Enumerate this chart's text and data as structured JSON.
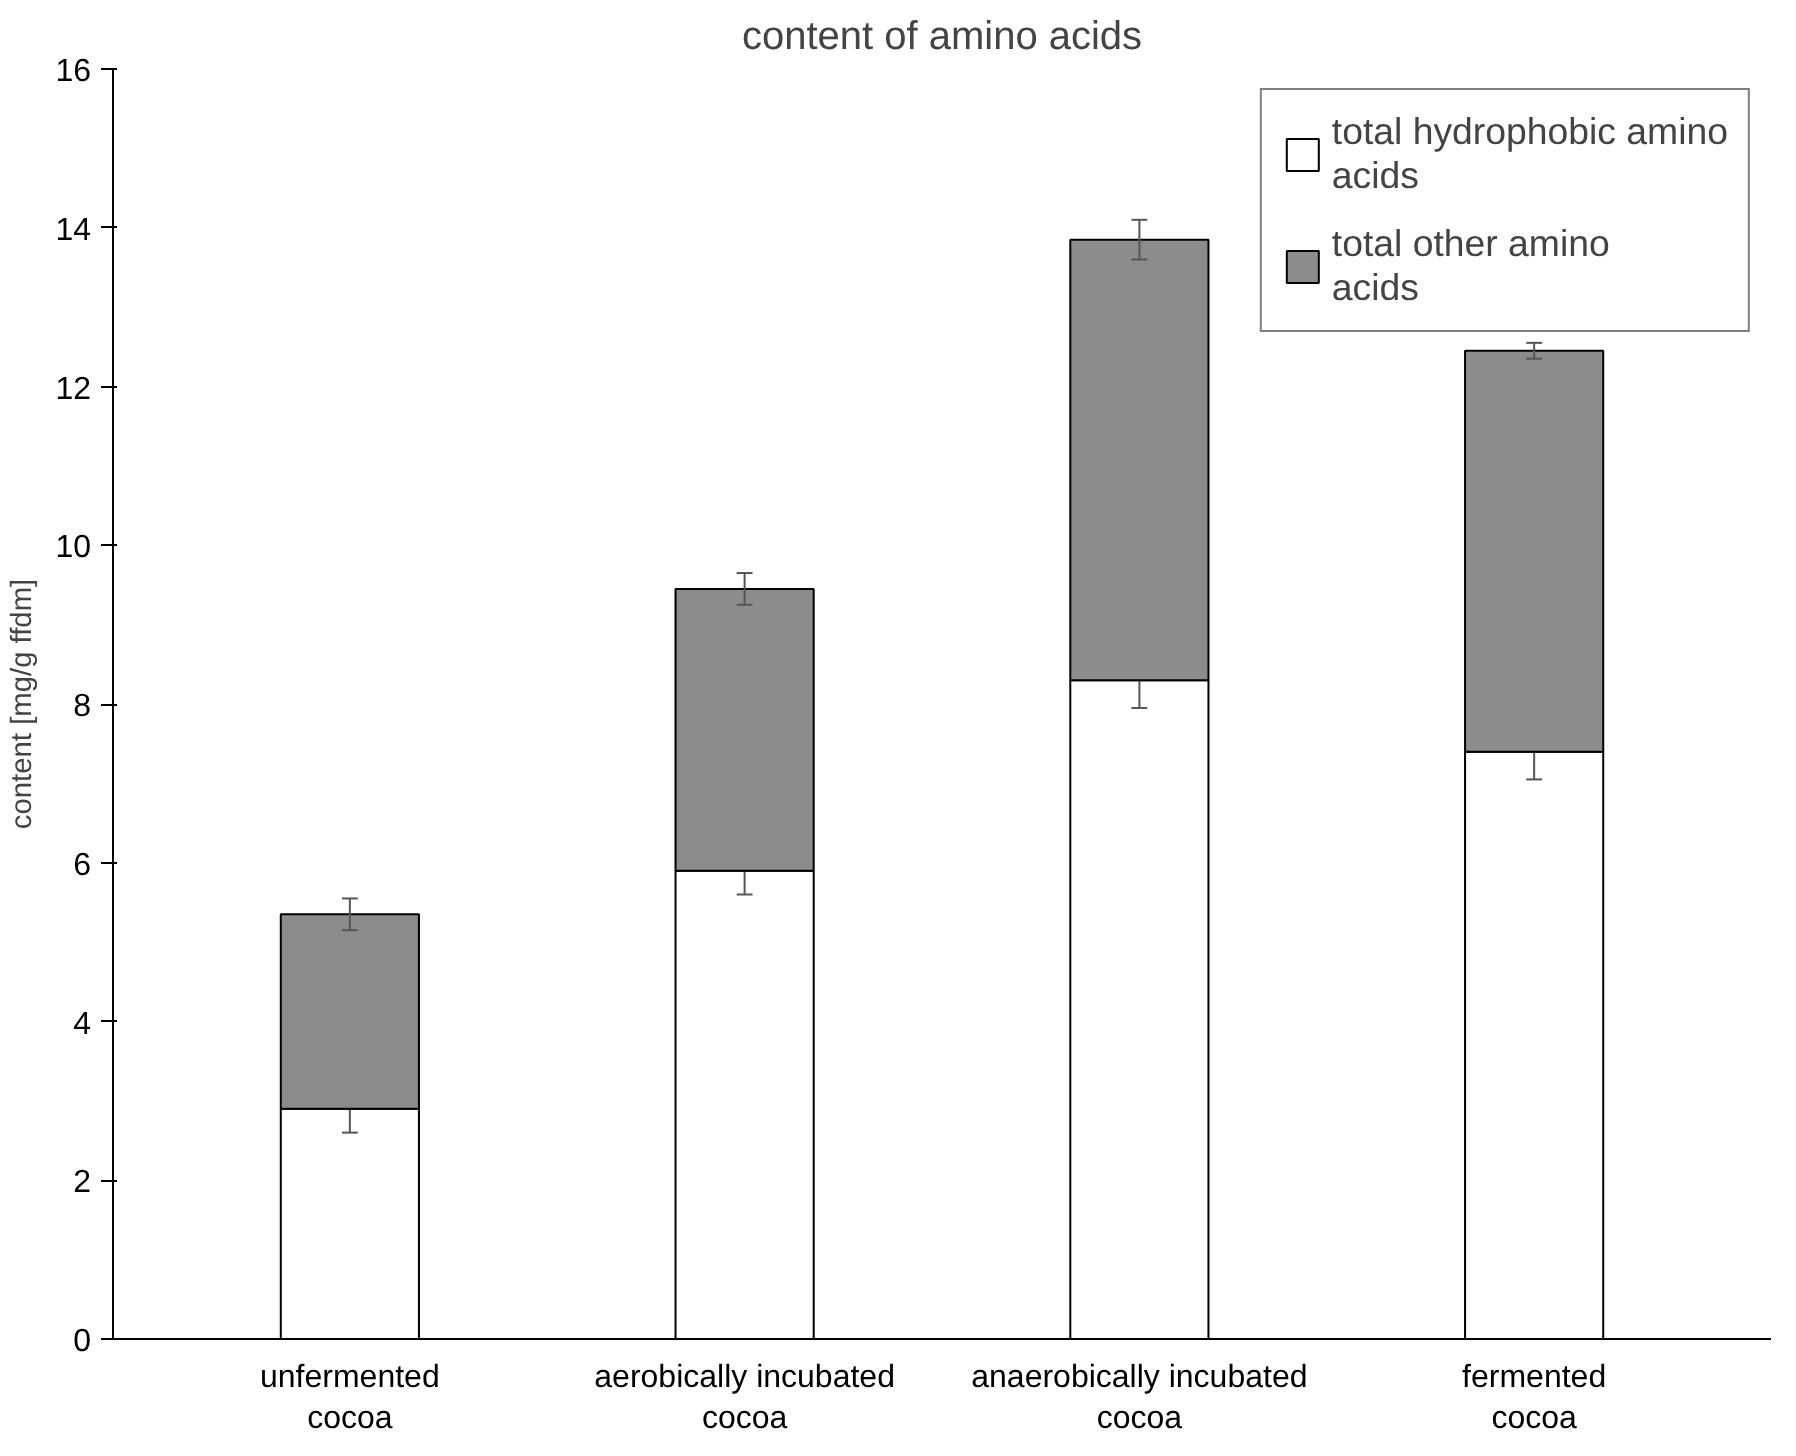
{
  "chart_data": {
    "type": "bar",
    "title": "content of amino acids",
    "ylabel": "content [mg/g ffdm]",
    "categories": [
      "unfermented cocoa",
      "aerobically incubated cocoa",
      "anaerobically incubated cocoa",
      "fermented cocoa"
    ],
    "stacked": true,
    "series": [
      {
        "name": "total hydrophobic amino acids",
        "color": "#ffffff",
        "values": [
          2.9,
          5.9,
          8.3,
          7.4
        ],
        "errors": [
          0.3,
          0.3,
          0.35,
          0.35
        ]
      },
      {
        "name": "total other amino acids",
        "color": "#8c8c8c",
        "values": [
          2.45,
          3.55,
          5.55,
          5.05
        ],
        "errors": [
          0.2,
          0.2,
          0.25,
          0.1
        ]
      }
    ],
    "ylim": [
      0,
      16
    ],
    "yticks": [
      0,
      2,
      4,
      6,
      8,
      10,
      12,
      14,
      16
    ],
    "grid": false,
    "legend": "top right"
  }
}
